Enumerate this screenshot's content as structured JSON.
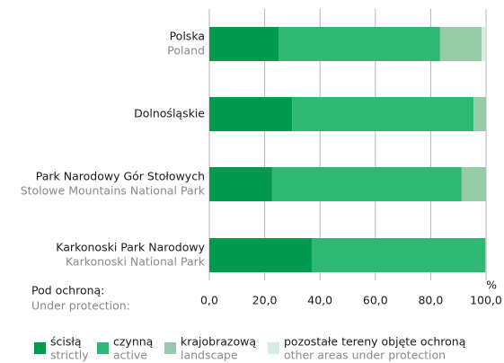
{
  "chart_data": {
    "type": "bar",
    "orientation": "horizontal",
    "stacked": true,
    "categories": [
      "Polska",
      "Dolnośląskie",
      "Park Narodowy Gór Stołowych",
      "Karkonoski Park Narodowy"
    ],
    "category_translations": [
      "Poland",
      null,
      "Stolowe Mountains National Park",
      "Karkonoski National Park"
    ],
    "series": [
      {
        "name": "ścisłą",
        "name_translation": "strictly",
        "color": "#009a4e",
        "values": [
          25.0,
          29.9,
          22.7,
          37.0
        ]
      },
      {
        "name": "czynną",
        "name_translation": "active",
        "color": "#2fb774",
        "values": [
          58.4,
          65.6,
          68.5,
          62.7
        ]
      },
      {
        "name": "krajobrazową",
        "name_translation": "landscape",
        "color": "#97cca8",
        "values": [
          15.0,
          4.5,
          8.8,
          0.3
        ]
      },
      {
        "name": "pozostałe tereny objęte ochroną",
        "name_translation": "other areas under protection",
        "color": "#d6ecda",
        "values": [
          1.6,
          0,
          0,
          0
        ]
      }
    ],
    "xlim": [
      0,
      100
    ],
    "xticks": [
      {
        "value": 0,
        "label": "0,0"
      },
      {
        "value": 20,
        "label": "20,0"
      },
      {
        "value": 40,
        "label": "40,0"
      },
      {
        "value": 60,
        "label": "60,0"
      },
      {
        "value": 80,
        "label": "80,0"
      },
      {
        "value": 100,
        "label": "100,0"
      }
    ],
    "x_unit": "%",
    "legend_title": "Pod ochroną:",
    "legend_title_translation": "Under protection:",
    "grid": true
  }
}
